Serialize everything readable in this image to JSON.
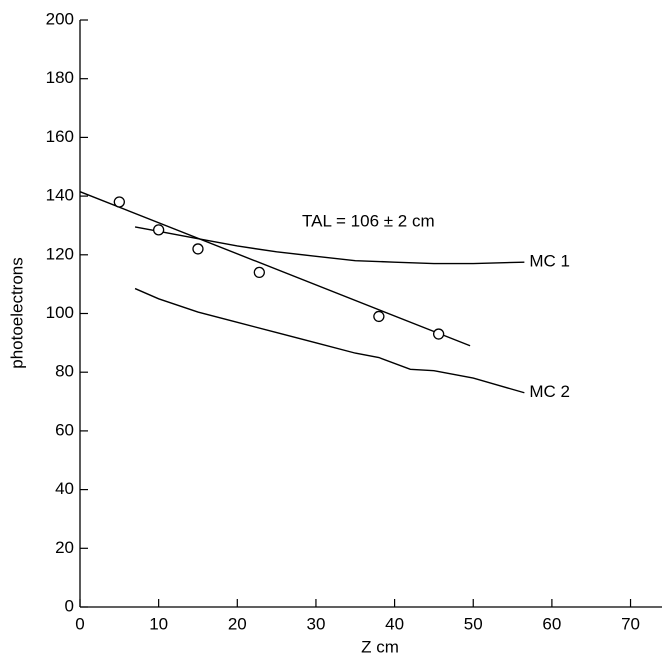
{
  "chart_data": {
    "type": "line",
    "xlabel": "Z cm",
    "ylabel": "photoelectrons",
    "annotation": "TAL = 106 ± 2 cm",
    "xlim": [
      0,
      74
    ],
    "xticks": [
      0,
      10,
      20,
      30,
      40,
      50,
      60,
      70
    ],
    "ylim": [
      0,
      200
    ],
    "yticks": [
      0,
      20,
      40,
      60,
      80,
      100,
      120,
      140,
      160,
      180,
      200
    ],
    "points": {
      "x": [
        5,
        10,
        15,
        22.8,
        38,
        45.6
      ],
      "values": [
        138,
        128.5,
        122,
        114,
        99,
        93
      ],
      "color": "#000000"
    },
    "fit": {
      "x": [
        0,
        49.6
      ],
      "values": [
        141.5,
        89
      ],
      "color": "#000000"
    },
    "series": [
      {
        "name": "MC 1",
        "color": "#000000",
        "x": [
          7,
          10,
          15,
          20,
          25,
          30,
          35,
          40,
          45,
          50,
          56.5
        ],
        "values": [
          129.5,
          128,
          125.5,
          123,
          121,
          119.5,
          118,
          117.5,
          117,
          117,
          117.5
        ]
      },
      {
        "name": "MC 2",
        "color": "#000000",
        "x": [
          7,
          10,
          15,
          20,
          25,
          30,
          35,
          38,
          42,
          45,
          50,
          56.5
        ],
        "values": [
          108.5,
          105,
          100.5,
          97,
          93.5,
          90,
          86.5,
          85,
          81,
          80.5,
          78,
          73
        ]
      }
    ]
  }
}
